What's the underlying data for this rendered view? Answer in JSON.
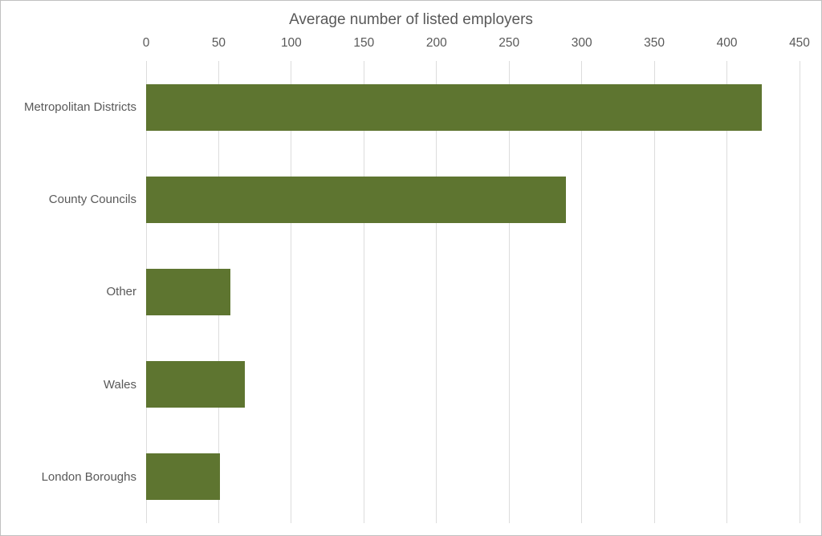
{
  "page": {
    "background": "#ffffff",
    "border_color": "#c0c0c0"
  },
  "chart_data": {
    "type": "bar",
    "orientation": "horizontal",
    "title": "Average number of listed employers",
    "categories": [
      "Metropolitan Districts",
      "County Councils",
      "Other",
      "Wales",
      "London Boroughs"
    ],
    "values": [
      424,
      289,
      58,
      68,
      51
    ],
    "x_ticks": [
      0,
      50,
      100,
      150,
      200,
      250,
      300,
      350,
      400,
      450
    ],
    "xlim": [
      0,
      450
    ],
    "xlabel": "",
    "ylabel": "",
    "axis_position": "top",
    "grid": "vertical-only",
    "legend": "none",
    "bar_color": "#5e7530",
    "grid_color": "#dcdcdc",
    "text_color": "#595959"
  }
}
